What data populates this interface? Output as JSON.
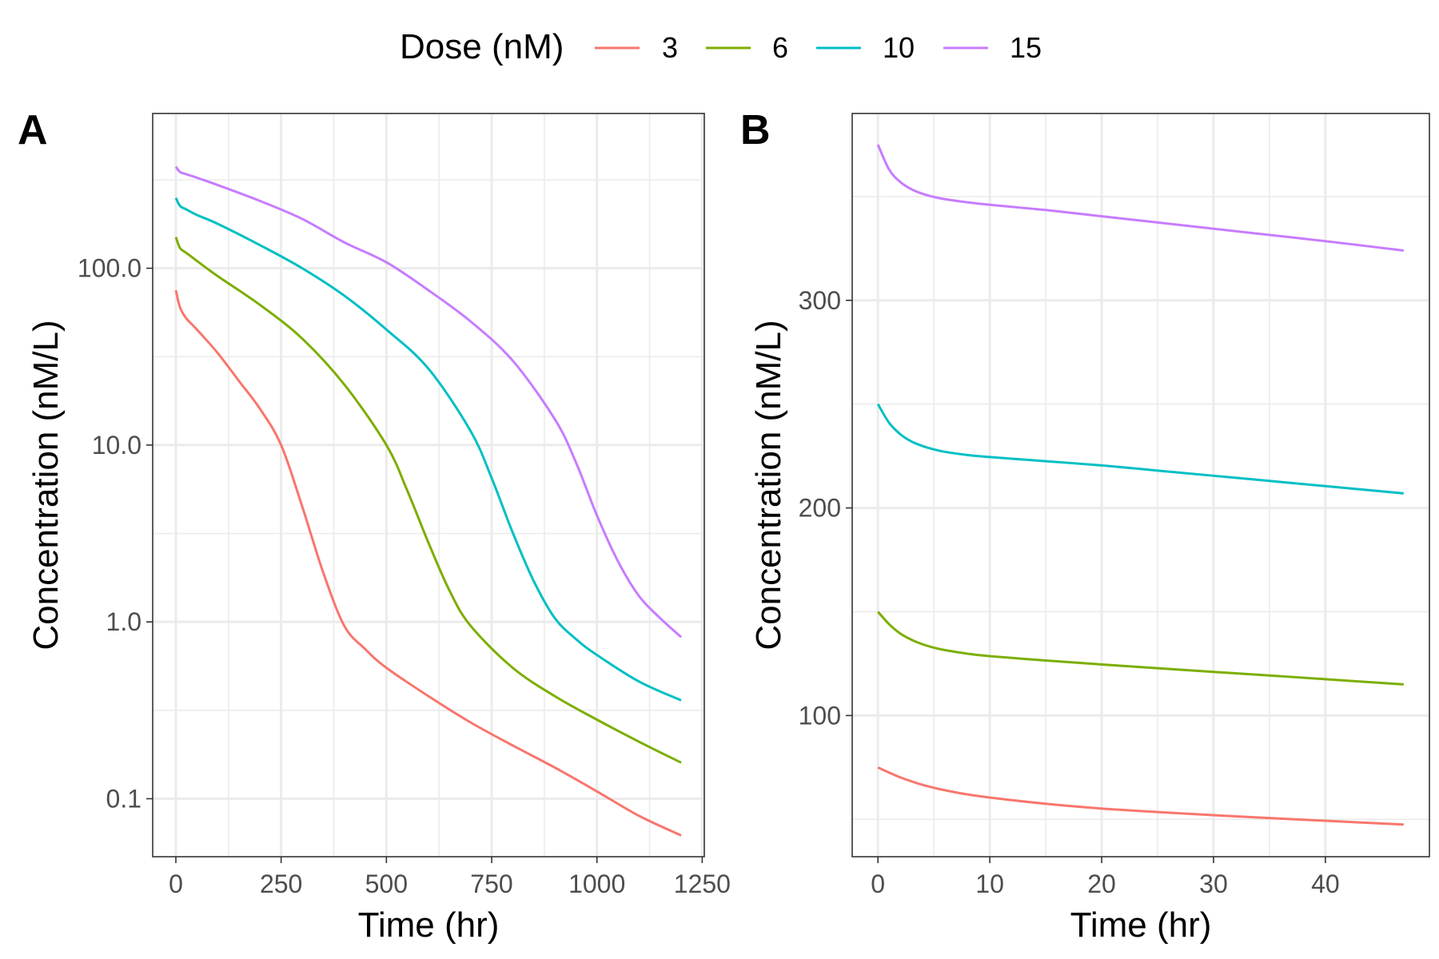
{
  "legend": {
    "title": "Dose (nM)",
    "entries": [
      {
        "label": "3",
        "color": "#F8766D"
      },
      {
        "label": "6",
        "color": "#7CAE00"
      },
      {
        "label": "10",
        "color": "#00BFC4"
      },
      {
        "label": "15",
        "color": "#C77CFF"
      }
    ]
  },
  "chart_data": [
    {
      "panel": "A",
      "type": "line",
      "xlabel": "Time (hr)",
      "ylabel": "Concentration (nM/L)",
      "yscale": "log10",
      "xlim": [
        -55,
        1255
      ],
      "ylim": [
        0.047,
        750
      ],
      "xticks": [
        0,
        250,
        500,
        750,
        1000,
        1250
      ],
      "xtick_labels": [
        "0",
        "250",
        "500",
        "750",
        "1000",
        "1250"
      ],
      "yticks": [
        0.1,
        1,
        10,
        100
      ],
      "ytick_labels": [
        "0.1",
        "1.0",
        "10.0",
        "100.0"
      ],
      "grid": true,
      "series": [
        {
          "name": "3",
          "color": "#F8766D",
          "x": [
            0,
            10,
            25,
            50,
            100,
            150,
            200,
            250,
            300,
            350,
            400,
            450,
            500,
            600,
            700,
            800,
            900,
            1000,
            1100,
            1200
          ],
          "y": [
            75,
            60,
            52,
            45,
            33,
            23,
            16,
            10,
            4.5,
            1.9,
            0.95,
            0.7,
            0.55,
            0.38,
            0.27,
            0.2,
            0.15,
            0.11,
            0.08,
            0.062
          ]
        },
        {
          "name": "6",
          "color": "#7CAE00",
          "x": [
            0,
            10,
            25,
            50,
            100,
            200,
            300,
            400,
            500,
            550,
            600,
            650,
            700,
            800,
            900,
            1000,
            1100,
            1200
          ],
          "y": [
            150,
            130,
            122,
            110,
            90,
            62,
            40,
            22,
            10,
            5.5,
            2.8,
            1.5,
            0.95,
            0.55,
            0.38,
            0.28,
            0.21,
            0.16
          ]
        },
        {
          "name": "10",
          "color": "#00BFC4",
          "x": [
            0,
            10,
            25,
            50,
            100,
            200,
            300,
            400,
            500,
            600,
            700,
            750,
            800,
            850,
            900,
            950,
            1000,
            1100,
            1200
          ],
          "y": [
            250,
            225,
            215,
            200,
            178,
            135,
            100,
            70,
            45,
            27,
            12,
            6.5,
            3.2,
            1.7,
            1.05,
            0.8,
            0.65,
            0.46,
            0.36
          ]
        },
        {
          "name": "15",
          "color": "#C77CFF",
          "x": [
            0,
            10,
            25,
            50,
            100,
            200,
            300,
            400,
            500,
            600,
            700,
            800,
            900,
            950,
            1000,
            1050,
            1100,
            1150,
            1200
          ],
          "y": [
            375,
            350,
            340,
            325,
            295,
            240,
            190,
            140,
            108,
            75,
            50,
            30,
            14,
            8,
            4,
            2.2,
            1.4,
            1.05,
            0.82
          ]
        }
      ]
    },
    {
      "panel": "B",
      "type": "line",
      "xlabel": "Time (hr)",
      "ylabel": "Concentration (nM/L)",
      "yscale": "linear",
      "xlim": [
        -2.3,
        49.3
      ],
      "ylim": [
        32,
        390
      ],
      "xticks": [
        0,
        10,
        20,
        30,
        40
      ],
      "xtick_labels": [
        "0",
        "10",
        "20",
        "30",
        "40"
      ],
      "yticks": [
        100,
        200,
        300
      ],
      "ytick_labels": [
        "100",
        "200",
        "300"
      ],
      "grid": true,
      "series": [
        {
          "name": "3",
          "color": "#F8766D",
          "x": [
            0,
            1,
            2,
            3,
            4,
            5,
            6,
            8,
            10,
            15,
            20,
            25,
            30,
            35,
            40,
            47
          ],
          "y": [
            75,
            72.5,
            70.2,
            68.3,
            66.6,
            65.2,
            64,
            62,
            60.5,
            57.5,
            55.2,
            53.5,
            52,
            50.6,
            49.3,
            47.5
          ]
        },
        {
          "name": "6",
          "color": "#7CAE00",
          "x": [
            0,
            1,
            2,
            3,
            4,
            5,
            6,
            8,
            10,
            15,
            20,
            25,
            30,
            35,
            40,
            47
          ],
          "y": [
            150,
            144,
            139.5,
            136.5,
            134.3,
            132.7,
            131.5,
            129.8,
            128.6,
            126.5,
            124.6,
            122.8,
            121,
            119.3,
            117.5,
            115
          ]
        },
        {
          "name": "10",
          "color": "#00BFC4",
          "x": [
            0,
            1,
            2,
            3,
            4,
            5,
            6,
            8,
            10,
            15,
            20,
            25,
            30,
            35,
            40,
            47
          ],
          "y": [
            250,
            241,
            235.5,
            232,
            229.8,
            228.2,
            227,
            225.5,
            224.5,
            222.5,
            220.5,
            218,
            215.5,
            213,
            210.5,
            207
          ]
        },
        {
          "name": "15",
          "color": "#C77CFF",
          "x": [
            0,
            1,
            2,
            3,
            4,
            5,
            6,
            8,
            10,
            15,
            20,
            25,
            30,
            35,
            40,
            47
          ],
          "y": [
            375,
            363,
            357,
            353.5,
            351.3,
            349.8,
            348.7,
            347.2,
            346,
            343.5,
            340.5,
            337.5,
            334.5,
            331.5,
            328.5,
            324
          ]
        }
      ]
    }
  ]
}
